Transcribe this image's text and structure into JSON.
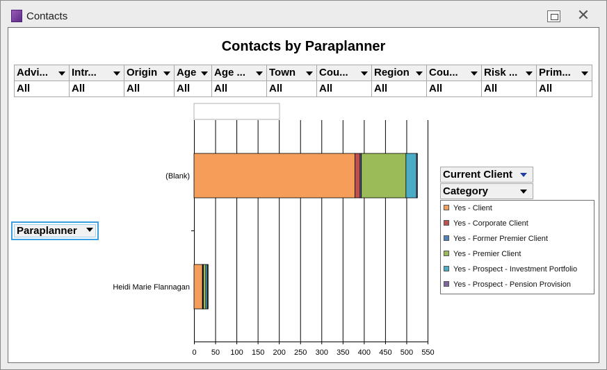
{
  "window": {
    "title": "Contacts",
    "icon": "app-icon",
    "restore_icon": "restore-icon",
    "close_icon": "close-icon"
  },
  "chart_title": "Contacts by Paraplanner",
  "filters": [
    {
      "label": "Advi...",
      "value": "All"
    },
    {
      "label": "Intr...",
      "value": "All"
    },
    {
      "label": "Origin",
      "value": "All"
    },
    {
      "label": "Age",
      "value": "All"
    },
    {
      "label": "Age ...",
      "value": "All"
    },
    {
      "label": "Town",
      "value": "All"
    },
    {
      "label": "Cou...",
      "value": "All"
    },
    {
      "label": "Region",
      "value": "All"
    },
    {
      "label": "Cou...",
      "value": "All"
    },
    {
      "label": "Risk ...",
      "value": "All"
    },
    {
      "label": "Prim...",
      "value": "All"
    }
  ],
  "row_field": "Paraplanner",
  "legend_fields": [
    "Current Client",
    "Category"
  ],
  "colors": {
    "Yes - Client": "#f59e5a",
    "Yes - Corporate Client": "#c0504d",
    "Yes - Former Premier Client": "#4f81bd",
    "Yes - Premier Client": "#9bbb59",
    "Yes - Prospect - Investment Portfolio": "#4bacc6",
    "Yes - Prospect - Pension Provision": "#8064a2"
  },
  "chart_data": {
    "type": "bar",
    "orientation": "horizontal",
    "stacked": true,
    "categories": [
      "(Blank)",
      "Heidi Marie Flannagan"
    ],
    "series": [
      {
        "name": "Yes - Client",
        "values": [
          379,
          20
        ]
      },
      {
        "name": "Yes - Corporate Client",
        "values": [
          12,
          1
        ]
      },
      {
        "name": "Yes - Former Premier Client",
        "values": [
          3,
          1
        ]
      },
      {
        "name": "Yes - Premier Client",
        "values": [
          105,
          6
        ]
      },
      {
        "name": "Yes - Prospect - Investment Portfolio",
        "values": [
          25,
          4
        ]
      },
      {
        "name": "Yes - Prospect - Pension Provision",
        "values": [
          2,
          1
        ]
      }
    ],
    "xlim": [
      0,
      550
    ],
    "xticks": [
      "0",
      "50",
      "100",
      "150",
      "200",
      "250",
      "300",
      "350",
      "400",
      "450",
      "500",
      "550"
    ],
    "grid": true,
    "legend": "right"
  }
}
